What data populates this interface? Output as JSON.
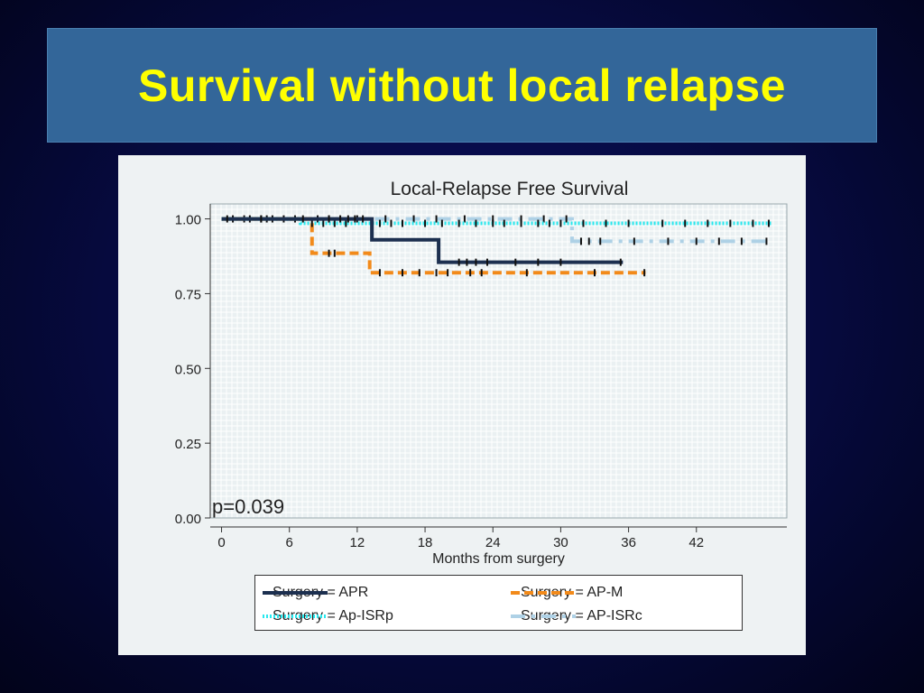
{
  "slide": {
    "title": "Survival without local relapse"
  },
  "chart_data": {
    "type": "line",
    "step": true,
    "title": "Local-Relapse Free Survival",
    "xlabel": "Months from surgery",
    "ylabel": "",
    "xticks": [
      "0",
      "6",
      "12",
      "18",
      "24",
      "30",
      "36",
      "42"
    ],
    "yticks": [
      "0.00",
      "0.25",
      "0.50",
      "0.75",
      "1.00"
    ],
    "xlim": [
      -1,
      50
    ],
    "ylim": [
      0,
      1.05
    ],
    "grid": true,
    "annotation": "p=0.039",
    "legend_position": "bottom",
    "series": [
      {
        "name": "Surgery = APR",
        "color": "#1c2f4f",
        "style": "solid",
        "steps": [
          [
            0,
            1.0
          ],
          [
            13.3,
            0.93
          ],
          [
            19.2,
            0.855
          ]
        ],
        "end": 35.5,
        "censored": [
          0.5,
          3.5,
          7.2,
          9.5,
          10.5,
          11.2,
          11.8,
          12.5,
          21,
          21.7,
          22.5,
          23.5,
          26,
          28,
          30,
          35.3
        ]
      },
      {
        "name": "Surgery = AP-M",
        "color": "#f28a1a",
        "style": "dashed",
        "steps": [
          [
            0,
            1.0
          ],
          [
            8.0,
            0.885
          ],
          [
            13.1,
            0.82
          ]
        ],
        "end": 37.5,
        "censored": [
          2,
          4,
          6.5,
          9.5,
          10,
          14,
          16,
          17.5,
          19,
          20,
          22,
          23,
          27,
          33,
          37.4
        ]
      },
      {
        "name": "Surgery = Ap-ISRp",
        "color": "#28e8ee",
        "style": "dotted",
        "steps": [
          [
            0,
            1.0
          ],
          [
            7.0,
            0.985
          ]
        ],
        "end": 48.6,
        "censored": [
          1,
          2.5,
          3.5,
          4.5,
          5.5,
          8,
          9,
          10,
          11,
          14,
          15,
          16,
          18,
          19.5,
          21,
          22.5,
          24,
          25,
          26.5,
          28,
          29,
          30,
          32,
          34,
          36,
          39,
          41,
          43,
          45,
          47,
          48.4
        ]
      },
      {
        "name": "Surgery = AP-ISRc",
        "color": "#aed1e6",
        "style": "longdash-dot",
        "steps": [
          [
            0,
            1.0
          ],
          [
            31.0,
            0.925
          ]
        ],
        "end": 48.3,
        "censored": [
          8.5,
          9.5,
          12,
          14.5,
          17,
          19,
          21.5,
          24,
          26.5,
          28.5,
          30.5,
          31.8,
          32.5,
          33.5,
          36.5,
          39.5,
          42,
          44,
          46,
          48.2
        ]
      }
    ]
  }
}
